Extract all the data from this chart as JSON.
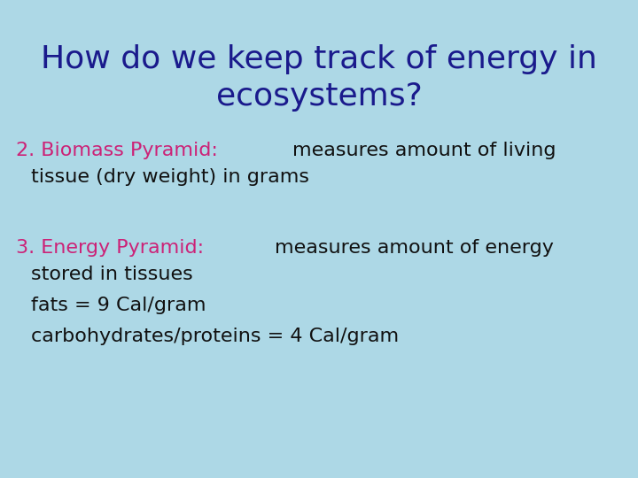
{
  "background_color": "#add8e6",
  "title_line1": "How do we keep track of energy in",
  "title_line2": "ecosystems?",
  "title_color": "#1a1a8c",
  "title_fontsize": 26,
  "line2_label": "2. Biomass Pyramid:  ",
  "line2_rest": "measures amount of living",
  "line2_cont": "tissue (dry weight) in grams",
  "line3_label": "3. Energy Pyramid:  ",
  "line3_rest": "measures amount of energy",
  "line3_cont1": "stored in tissues",
  "line3_cont2": "fats = 9 Cal/gram",
  "line3_cont3": "carbohydrates/proteins = 4 Cal/gram",
  "body_fontsize": 16,
  "body_color": "#111111",
  "label_color": "#cc2277",
  "title_font": "DejaVu Sans"
}
